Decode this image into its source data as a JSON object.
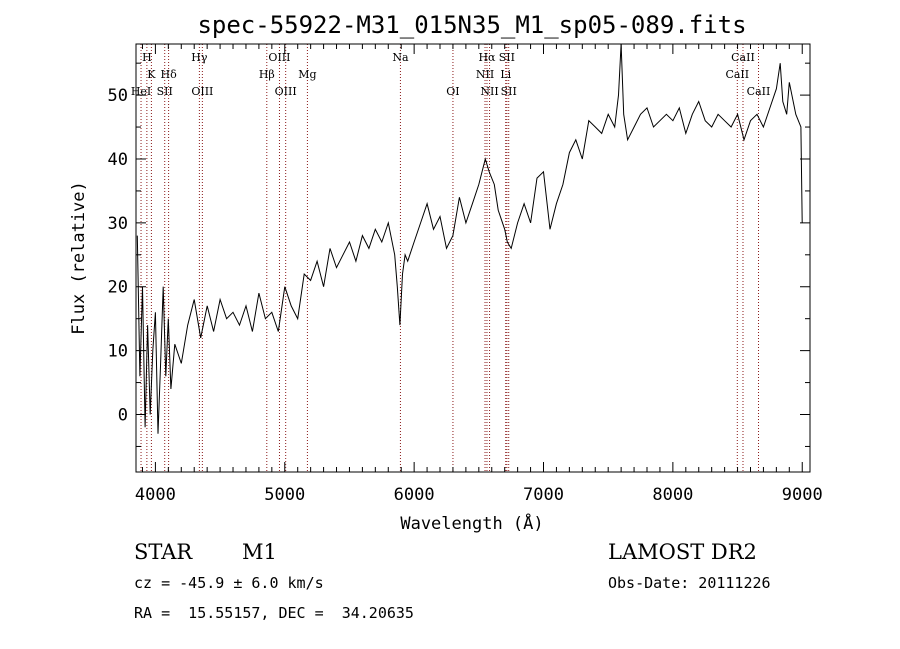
{
  "title": "spec-55922-M31_015N35_M1_sp05-089.fits",
  "info": {
    "class": "STAR",
    "subclass": "M1",
    "survey": "LAMOST DR2",
    "cz": "cz = -45.9 ± 6.0 km/s",
    "obs_date": "Obs-Date: 20111226",
    "radec": "RA =  15.55157, DEC =  34.20635"
  },
  "chart_data": {
    "type": "line",
    "title": "spec-55922-M31_015N35_M1_sp05-089.fits",
    "xlabel": "Wavelength (Å)",
    "ylabel": "Flux (relative)",
    "xlim": [
      3850,
      9060
    ],
    "ylim": [
      -9,
      58
    ],
    "xticks": [
      4000,
      5000,
      6000,
      7000,
      8000,
      9000
    ],
    "yticks": [
      0,
      10,
      20,
      30,
      40,
      50
    ],
    "grid": false,
    "line_color": "#000000",
    "marker_color": "#8b1a1a",
    "spectrum": {
      "name": "",
      "x": [
        3860,
        3880,
        3900,
        3920,
        3940,
        3960,
        3980,
        4000,
        4020,
        4040,
        4060,
        4080,
        4100,
        4120,
        4150,
        4200,
        4250,
        4300,
        4350,
        4400,
        4450,
        4500,
        4550,
        4600,
        4650,
        4700,
        4750,
        4800,
        4850,
        4900,
        4950,
        5000,
        5050,
        5100,
        5150,
        5200,
        5250,
        5300,
        5350,
        5400,
        5450,
        5500,
        5550,
        5600,
        5650,
        5700,
        5750,
        5800,
        5850,
        5870,
        5890,
        5910,
        5930,
        5950,
        6000,
        6050,
        6100,
        6150,
        6200,
        6250,
        6300,
        6350,
        6400,
        6450,
        6500,
        6550,
        6580,
        6620,
        6650,
        6700,
        6720,
        6750,
        6800,
        6850,
        6900,
        6950,
        7000,
        7050,
        7100,
        7150,
        7200,
        7250,
        7300,
        7350,
        7400,
        7450,
        7500,
        7550,
        7580,
        7600,
        7620,
        7650,
        7700,
        7750,
        7800,
        7850,
        7900,
        7950,
        8000,
        8050,
        8100,
        8150,
        8200,
        8250,
        8300,
        8350,
        8400,
        8450,
        8500,
        8550,
        8600,
        8650,
        8700,
        8750,
        8800,
        8830,
        8850,
        8880,
        8900,
        8950,
        8990,
        9000
      ],
      "y": [
        28,
        6,
        20,
        -2,
        14,
        0,
        10,
        16,
        -3,
        8,
        20,
        6,
        15,
        4,
        11,
        8,
        14,
        18,
        12,
        17,
        13,
        18,
        15,
        16,
        14,
        17,
        13,
        19,
        15,
        16,
        13,
        20,
        17,
        15,
        22,
        21,
        24,
        20,
        26,
        23,
        25,
        27,
        24,
        28,
        26,
        29,
        27,
        30,
        25,
        20,
        14,
        22,
        25,
        24,
        27,
        30,
        33,
        29,
        31,
        26,
        28,
        34,
        30,
        33,
        36,
        40,
        38,
        36,
        32,
        29,
        27,
        26,
        30,
        33,
        30,
        37,
        38,
        29,
        33,
        36,
        41,
        43,
        40,
        46,
        45,
        44,
        47,
        45,
        50,
        58,
        47,
        43,
        45,
        47,
        48,
        45,
        46,
        47,
        46,
        48,
        44,
        47,
        49,
        46,
        45,
        47,
        46,
        45,
        47,
        43,
        46,
        47,
        45,
        48,
        51,
        55,
        49,
        47,
        52,
        47,
        45,
        30
      ]
    },
    "line_markers": [
      {
        "label": "H",
        "wavelength": 3934,
        "row": 1
      },
      {
        "label": "K",
        "wavelength": 3969,
        "row": 2
      },
      {
        "label": "HeI",
        "wavelength": 3889,
        "row": 3
      },
      {
        "label": "SII",
        "wavelength": 4072,
        "row": 3
      },
      {
        "label": "Hδ",
        "wavelength": 4102,
        "row": 2
      },
      {
        "label": "Hγ",
        "wavelength": 4340,
        "row": 1
      },
      {
        "label": "OIII",
        "wavelength": 4363,
        "row": 3
      },
      {
        "label": "OIII",
        "wavelength": 4959,
        "row": 1
      },
      {
        "label": "Hβ",
        "wavelength": 4861,
        "row": 2
      },
      {
        "label": "OIII",
        "wavelength": 5007,
        "row": 3
      },
      {
        "label": "Mg",
        "wavelength": 5175,
        "row": 2
      },
      {
        "label": "Na",
        "wavelength": 5894,
        "row": 1
      },
      {
        "label": "OI",
        "wavelength": 6300,
        "row": 3
      },
      {
        "label": "Hα",
        "wavelength": 6563,
        "row": 1
      },
      {
        "label": "SII",
        "wavelength": 6717,
        "row": 1
      },
      {
        "label": "NII",
        "wavelength": 6548,
        "row": 2
      },
      {
        "label": "Li",
        "wavelength": 6708,
        "row": 2
      },
      {
        "label": "NII",
        "wavelength": 6583,
        "row": 3
      },
      {
        "label": "SII",
        "wavelength": 6731,
        "row": 3
      },
      {
        "label": "CaII",
        "wavelength": 8542,
        "row": 1
      },
      {
        "label": "CaII",
        "wavelength": 8498,
        "row": 2
      },
      {
        "label": "CaII",
        "wavelength": 8662,
        "row": 3
      }
    ]
  }
}
